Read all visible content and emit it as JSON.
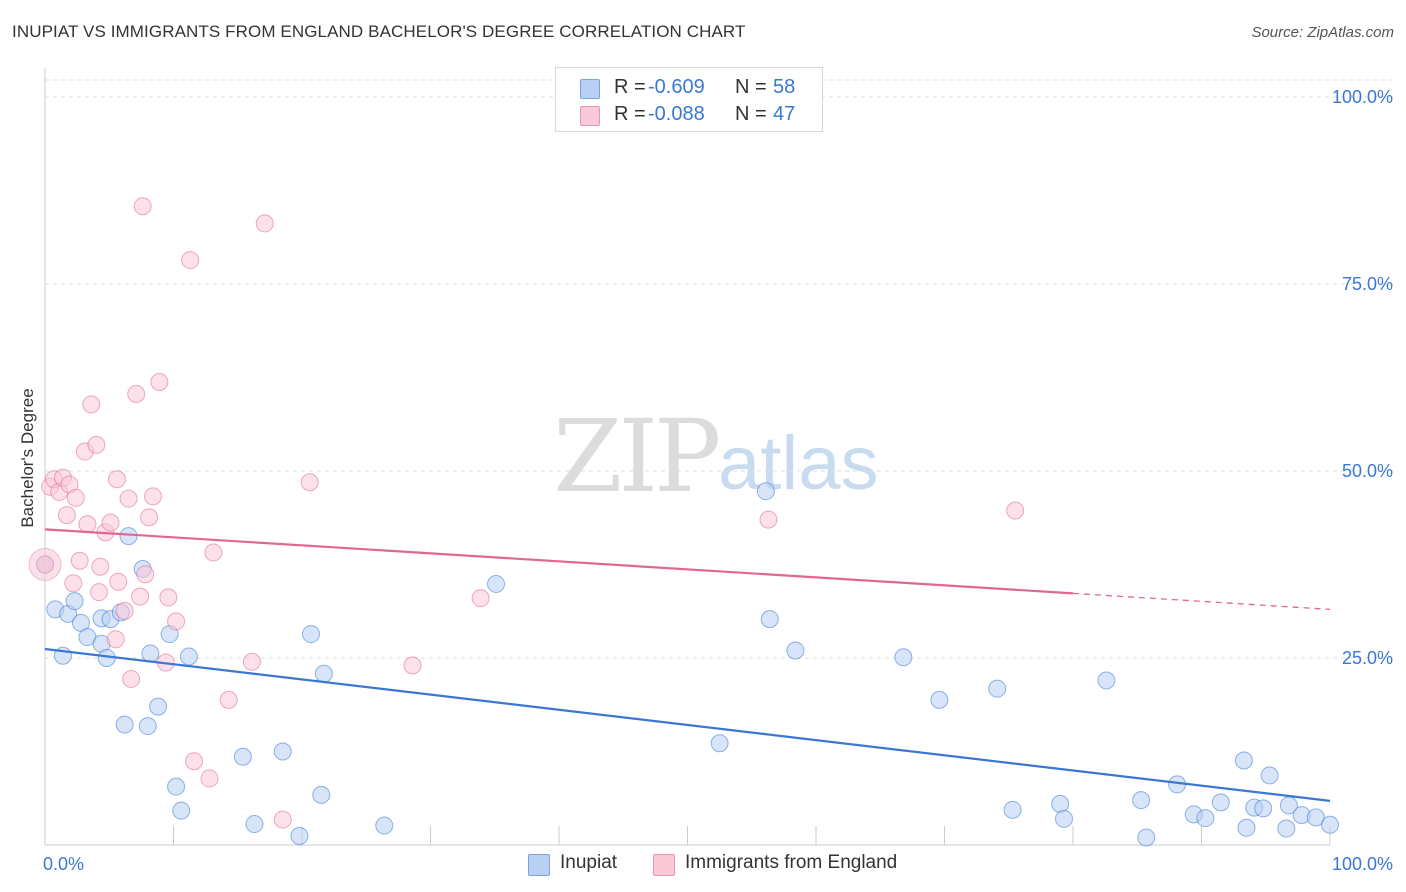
{
  "header": {
    "title": "INUPIAT VS IMMIGRANTS FROM ENGLAND BACHELOR'S DEGREE CORRELATION CHART",
    "source": "Source: ZipAtlas.com"
  },
  "watermark": {
    "zip": "ZIP",
    "atlas": "atlas"
  },
  "legend": {
    "rows": [
      {
        "r_label": "R =",
        "r_value": "-0.609",
        "n_label": "N =",
        "n_value": "58",
        "color": "#b8d0f4",
        "border": "#7aa3e0"
      },
      {
        "r_label": "R =",
        "r_value": "-0.088",
        "n_label": "N =",
        "n_value": "47",
        "color": "#f9c9d8",
        "border": "#e896b2"
      }
    ]
  },
  "bottom_legend": {
    "items": [
      {
        "label": "Inupiat",
        "color": "#b8d0f4",
        "border": "#7aa3e0"
      },
      {
        "label": "Immigrants from England",
        "color": "#f9c9d8",
        "border": "#e896b2"
      }
    ]
  },
  "chart_data": {
    "type": "scatter",
    "title": "INUPIAT VS IMMIGRANTS FROM ENGLAND BACHELOR'S DEGREE CORRELATION CHART",
    "xlabel": "",
    "ylabel": "Bachelor's Degree",
    "xlim": [
      0,
      100
    ],
    "ylim": [
      0,
      100
    ],
    "x_tick_labels": [
      "0.0%",
      "100.0%"
    ],
    "y_ticks": [
      25,
      50,
      75,
      100
    ],
    "y_tick_labels": [
      "25.0%",
      "50.0%",
      "75.0%",
      "100.0%"
    ],
    "grid": true,
    "series": [
      {
        "name": "Inupiat",
        "color": "#3a78d2",
        "fill": "#b8d0f4",
        "r": -0.609,
        "n": 58,
        "trend": {
          "x0": 0,
          "y0": 26.2,
          "x1": 100,
          "y1": 5.9,
          "solid_until": 100
        },
        "points": [
          [
            0.0,
            37.5
          ],
          [
            0.8,
            31.5
          ],
          [
            1.4,
            25.3
          ],
          [
            1.8,
            30.9
          ],
          [
            2.3,
            32.6
          ],
          [
            2.8,
            29.7
          ],
          [
            3.3,
            27.8
          ],
          [
            4.4,
            30.3
          ],
          [
            4.4,
            26.9
          ],
          [
            4.8,
            25.0
          ],
          [
            5.1,
            30.2
          ],
          [
            5.9,
            31.1
          ],
          [
            6.2,
            16.1
          ],
          [
            6.5,
            41.3
          ],
          [
            7.6,
            36.9
          ],
          [
            8.0,
            15.9
          ],
          [
            8.2,
            25.6
          ],
          [
            8.8,
            18.5
          ],
          [
            9.7,
            28.2
          ],
          [
            10.2,
            7.8
          ],
          [
            10.6,
            4.6
          ],
          [
            11.2,
            25.2
          ],
          [
            15.4,
            11.8
          ],
          [
            16.3,
            2.8
          ],
          [
            18.5,
            12.5
          ],
          [
            19.8,
            1.2
          ],
          [
            20.7,
            28.2
          ],
          [
            21.5,
            6.7
          ],
          [
            21.7,
            22.9
          ],
          [
            26.4,
            2.6
          ],
          [
            35.1,
            34.9
          ],
          [
            52.5,
            13.6
          ],
          [
            56.1,
            47.3
          ],
          [
            56.4,
            30.2
          ],
          [
            58.4,
            26.0
          ],
          [
            66.8,
            25.1
          ],
          [
            69.6,
            19.4
          ],
          [
            74.1,
            20.9
          ],
          [
            75.3,
            4.7
          ],
          [
            79.0,
            5.5
          ],
          [
            79.3,
            3.5
          ],
          [
            82.6,
            22.0
          ],
          [
            85.3,
            6.0
          ],
          [
            85.7,
            1.0
          ],
          [
            88.1,
            8.1
          ],
          [
            89.4,
            4.1
          ],
          [
            90.3,
            3.6
          ],
          [
            91.5,
            5.7
          ],
          [
            93.3,
            11.3
          ],
          [
            93.5,
            2.3
          ],
          [
            94.1,
            5.0
          ],
          [
            94.8,
            4.9
          ],
          [
            95.3,
            9.3
          ],
          [
            96.6,
            2.2
          ],
          [
            96.8,
            5.3
          ],
          [
            97.8,
            4.0
          ],
          [
            98.9,
            3.7
          ],
          [
            100.0,
            2.7
          ]
        ]
      },
      {
        "name": "Immigrants from England",
        "color": "#e0688f",
        "fill": "#f9c9d8",
        "r": -0.088,
        "n": 47,
        "trend": {
          "x0": 0,
          "y0": 42.2,
          "x1": 100,
          "y1": 31.5,
          "solid_until": 80
        },
        "points": [
          [
            0.0,
            37.5
          ],
          [
            0.4,
            47.9
          ],
          [
            0.7,
            48.9
          ],
          [
            1.1,
            47.2
          ],
          [
            1.4,
            49.1
          ],
          [
            1.7,
            44.1
          ],
          [
            1.9,
            48.2
          ],
          [
            2.2,
            35.0
          ],
          [
            2.4,
            46.4
          ],
          [
            2.7,
            38.0
          ],
          [
            3.1,
            52.6
          ],
          [
            3.3,
            42.9
          ],
          [
            3.6,
            58.9
          ],
          [
            4.0,
            53.5
          ],
          [
            4.2,
            33.8
          ],
          [
            4.3,
            37.2
          ],
          [
            4.7,
            41.8
          ],
          [
            5.1,
            43.1
          ],
          [
            5.5,
            27.5
          ],
          [
            5.6,
            48.9
          ],
          [
            5.7,
            35.2
          ],
          [
            6.2,
            31.3
          ],
          [
            6.5,
            46.3
          ],
          [
            6.7,
            22.2
          ],
          [
            7.1,
            60.3
          ],
          [
            7.4,
            33.2
          ],
          [
            7.6,
            85.4
          ],
          [
            7.8,
            36.2
          ],
          [
            8.1,
            43.8
          ],
          [
            8.4,
            46.6
          ],
          [
            8.9,
            61.9
          ],
          [
            9.4,
            24.4
          ],
          [
            9.6,
            33.1
          ],
          [
            10.2,
            29.9
          ],
          [
            11.3,
            78.2
          ],
          [
            11.6,
            11.2
          ],
          [
            12.8,
            8.9
          ],
          [
            13.1,
            39.1
          ],
          [
            14.3,
            19.4
          ],
          [
            16.1,
            24.5
          ],
          [
            17.1,
            83.1
          ],
          [
            18.5,
            3.4
          ],
          [
            20.6,
            48.5
          ],
          [
            28.6,
            24.0
          ],
          [
            33.9,
            33.0
          ],
          [
            56.3,
            43.5
          ],
          [
            75.5,
            44.7
          ]
        ]
      }
    ]
  }
}
